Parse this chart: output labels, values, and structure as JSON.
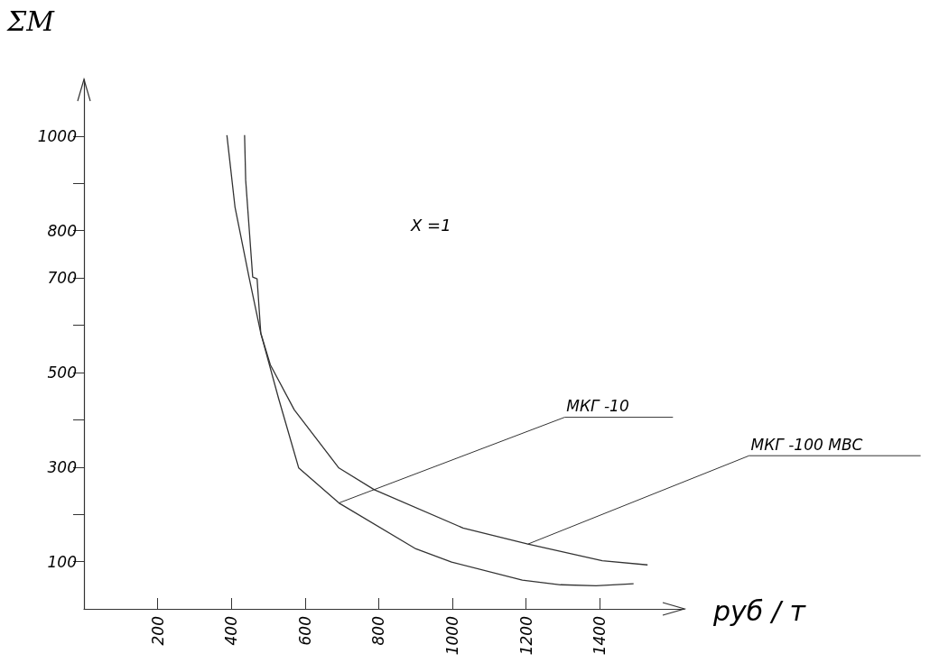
{
  "chart_data": {
    "type": "line",
    "xlabel": "руб / т",
    "ylabel": "ΣM",
    "annotations": [
      "X =1"
    ],
    "series": [
      {
        "name": "МКГ -10",
        "color": "#333333",
        "x": [
          436,
          439,
          458,
          470,
          480,
          528,
          583,
          692,
          901,
          998,
          1190,
          1294,
          1390,
          1492
        ],
        "values": [
          1002,
          907,
          702,
          698,
          583,
          446,
          298,
          224,
          127,
          99,
          61,
          51,
          49,
          53
        ]
      },
      {
        "name": "МКГ -100 МВС",
        "color": "#333333",
        "x": [
          388,
          410,
          448,
          480,
          506,
          571,
          692,
          788,
          1029,
          1205,
          1407,
          1530
        ],
        "values": [
          1002,
          850,
          702,
          583,
          516,
          421,
          298,
          252,
          171,
          137,
          102,
          93
        ]
      }
    ],
    "xlim": [
      0,
      1630
    ],
    "xticks": [
      200,
      400,
      600,
      800,
      1000,
      1200,
      1400
    ],
    "ylim": [
      0,
      1120
    ],
    "yticks": [
      {
        "value": 100,
        "label": "100"
      },
      {
        "value": 200,
        "label": null
      },
      {
        "value": 300,
        "label": "300"
      },
      {
        "value": 400,
        "label": null
      },
      {
        "value": 500,
        "label": "500"
      },
      {
        "value": 600,
        "label": null
      },
      {
        "value": 700,
        "label": "700"
      },
      {
        "value": 800,
        "label": "800"
      },
      {
        "value": 900,
        "label": null
      },
      {
        "value": 1000,
        "label": "1000"
      }
    ],
    "grid": false,
    "legend": false,
    "marker": "none",
    "line_style": "solid"
  }
}
